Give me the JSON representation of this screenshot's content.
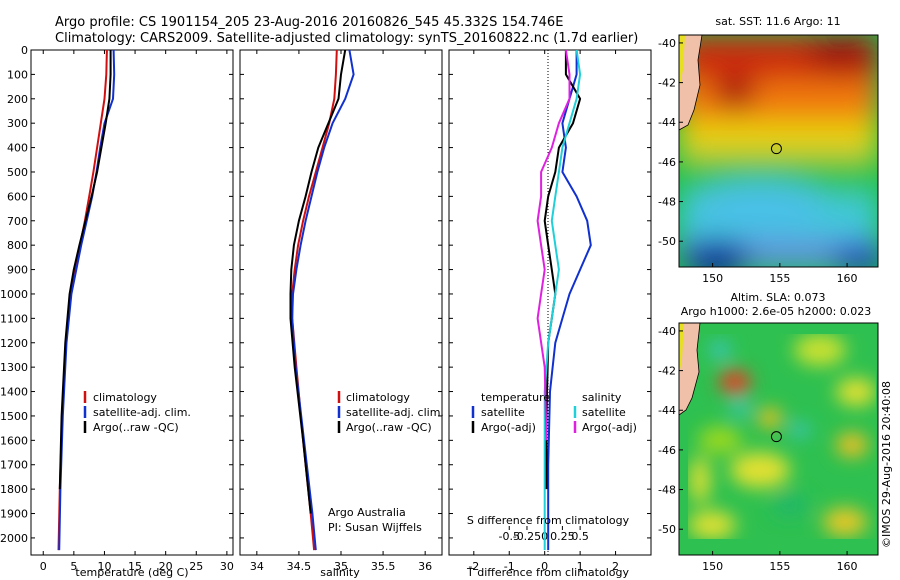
{
  "header": {
    "line1": "Argo profile: CS 1901154_205 23-Aug-2016 20160826_545 45.332S 154.746E",
    "line2": "Climatology: CARS2009. Satellite-adjusted climatology: synTS_20160822.nc (1.7d earlier)"
  },
  "colors": {
    "climatology": "#d01010",
    "satellite": "#1030d0",
    "argo": "#000000",
    "cyan": "#20d0d8",
    "magenta": "#e020e0"
  },
  "chart_data": [
    {
      "id": "temperature",
      "type": "line",
      "xlabel": "temperature (deg C)",
      "ylabel": "",
      "xlim": [
        -2,
        31
      ],
      "ylim": [
        2070,
        0
      ],
      "xticks": [
        0,
        5,
        10,
        15,
        20,
        25,
        30
      ],
      "yticks": [
        0,
        100,
        200,
        300,
        400,
        500,
        600,
        700,
        800,
        900,
        1000,
        1100,
        1200,
        1300,
        1400,
        1500,
        1600,
        1700,
        1800,
        1900,
        2000
      ],
      "legend": {
        "placement": "lower-center",
        "entries": [
          "climatology",
          "satellite-adj. clim.",
          "Argo(..raw -QC)"
        ]
      },
      "series": [
        {
          "name": "climatology",
          "color": "#d01010",
          "x": [
            10.4,
            10.3,
            10.0,
            9.4,
            8.8,
            8.2,
            7.5,
            6.8,
            6.0,
            5.2,
            4.4,
            3.7,
            3.1,
            2.7,
            2.5
          ],
          "y": [
            0,
            100,
            200,
            300,
            400,
            500,
            600,
            700,
            800,
            900,
            1000,
            1200,
            1500,
            1800,
            2050
          ]
        },
        {
          "name": "satellite-adj. clim.",
          "color": "#1030d0",
          "x": [
            11.5,
            11.6,
            11.4,
            10.0,
            9.3,
            8.7,
            8.0,
            7.1,
            6.2,
            5.4,
            4.6,
            3.8,
            3.2,
            2.8,
            2.6
          ],
          "y": [
            0,
            100,
            200,
            300,
            400,
            500,
            600,
            700,
            800,
            900,
            1000,
            1200,
            1500,
            1800,
            2050
          ]
        },
        {
          "name": "Argo(..raw -QC)",
          "color": "#000000",
          "x": [
            11.0,
            11.0,
            10.8,
            10.2,
            9.5,
            8.8,
            7.9,
            6.9,
            5.9,
            5.0,
            4.3,
            3.6,
            3.0,
            2.7
          ],
          "y": [
            0,
            100,
            200,
            300,
            400,
            500,
            600,
            700,
            800,
            900,
            1000,
            1200,
            1500,
            1800
          ]
        }
      ]
    },
    {
      "id": "salinity",
      "type": "line",
      "xlabel": "salinity",
      "ylabel": "",
      "xlim": [
        33.8,
        36.2
      ],
      "ylim": [
        2070,
        0
      ],
      "xticks": [
        34,
        34.5,
        35,
        35.5,
        36
      ],
      "legend": {
        "placement": "lower-center",
        "entries": [
          "climatology",
          "satellite-adj. clim.",
          "Argo(..raw -QC)"
        ]
      },
      "annotation": [
        "Argo Australia",
        "PI: Susan Wijffels"
      ],
      "series": [
        {
          "name": "climatology",
          "color": "#d01010",
          "x": [
            34.95,
            34.94,
            34.92,
            34.86,
            34.78,
            34.7,
            34.62,
            34.55,
            34.49,
            34.45,
            34.42,
            34.42,
            34.47,
            34.55,
            34.64,
            34.68
          ],
          "y": [
            0,
            100,
            200,
            300,
            400,
            500,
            600,
            700,
            800,
            900,
            1000,
            1100,
            1300,
            1600,
            1900,
            2050
          ]
        },
        {
          "name": "satellite-adj. clim.",
          "color": "#1030d0",
          "x": [
            35.1,
            35.15,
            35.05,
            34.9,
            34.8,
            34.72,
            34.65,
            34.58,
            34.52,
            34.47,
            34.43,
            34.42,
            34.46,
            34.56,
            34.66,
            34.7
          ],
          "y": [
            0,
            100,
            200,
            300,
            400,
            500,
            600,
            700,
            800,
            900,
            1000,
            1100,
            1300,
            1600,
            1900,
            2050
          ]
        },
        {
          "name": "Argo(..raw -QC)",
          "color": "#000000",
          "x": [
            35.05,
            35.0,
            34.97,
            34.85,
            34.73,
            34.65,
            34.58,
            34.5,
            34.44,
            34.41,
            34.4,
            34.4,
            34.45,
            34.55,
            34.64
          ],
          "y": [
            0,
            100,
            200,
            300,
            400,
            500,
            600,
            700,
            800,
            900,
            1000,
            1100,
            1300,
            1600,
            1900
          ]
        }
      ]
    },
    {
      "id": "difference",
      "type": "line",
      "xlabel": "T difference from climatology",
      "ylabel": "",
      "xlim": [
        -2.7,
        3.0
      ],
      "ylim": [
        2070,
        0
      ],
      "xticks": [
        -2,
        -1,
        0,
        1,
        2
      ],
      "top_axis": {
        "label": "S difference from climatology",
        "ticks": [
          -0.5,
          -0.25,
          0,
          0.25,
          0.5
        ]
      },
      "legend": {
        "placement": "lower-center",
        "groups": [
          {
            "title": "temperature",
            "entries": [
              "satellite",
              "Argo(-adj)"
            ]
          },
          {
            "title": "salinity",
            "entries": [
              "satellite",
              "Argo(-adj)"
            ]
          }
        ]
      },
      "series": [
        {
          "name": "satellite",
          "group": "temperature",
          "color": "#1030d0",
          "x": [
            0.9,
            0.9,
            0.7,
            0.5,
            0.6,
            0.5,
            0.9,
            1.2,
            1.3,
            1.0,
            0.7,
            0.5,
            0.3,
            0.15,
            0.1,
            0.1
          ],
          "y": [
            0,
            100,
            200,
            300,
            400,
            500,
            600,
            700,
            800,
            900,
            1000,
            1100,
            1200,
            1400,
            1700,
            2050
          ]
        },
        {
          "name": "Argo(-adj)",
          "group": "temperature",
          "color": "#000000",
          "x": [
            0.6,
            0.6,
            1.0,
            0.8,
            0.4,
            0.3,
            0.1,
            0.0,
            0.1,
            0.2,
            0.3,
            0.2,
            0.1,
            0.05,
            0.05
          ],
          "y": [
            0,
            100,
            200,
            300,
            400,
            500,
            600,
            700,
            800,
            900,
            1000,
            1100,
            1200,
            1500,
            1800
          ]
        },
        {
          "name": "satellite",
          "group": "salinity",
          "color": "#20d0d8",
          "x": [
            0.9,
            1.0,
            0.9,
            0.7,
            0.5,
            0.4,
            0.3,
            0.2,
            0.3,
            0.4,
            0.3,
            0.2,
            0.1,
            0.0,
            0.0,
            0.0
          ],
          "y": [
            0,
            100,
            200,
            300,
            400,
            500,
            600,
            700,
            800,
            900,
            1000,
            1100,
            1200,
            1400,
            1700,
            2050
          ]
        },
        {
          "name": "Argo(-adj)",
          "group": "salinity",
          "color": "#e020e0",
          "x": [
            0.6,
            0.7,
            0.7,
            0.4,
            0.2,
            -0.1,
            -0.1,
            -0.2,
            -0.1,
            0.0,
            -0.1,
            -0.2,
            0.0,
            0.05
          ],
          "y": [
            0,
            100,
            200,
            300,
            400,
            500,
            600,
            700,
            800,
            900,
            1000,
            1100,
            1300,
            1600
          ]
        }
      ]
    },
    {
      "id": "sst-map",
      "type": "heatmap",
      "title": "sat. SST: 11.6 Argo: 11",
      "xlim": [
        147.5,
        162.3
      ],
      "ylim": [
        -51.3,
        -39.6
      ],
      "xticks": [
        150,
        155,
        160
      ],
      "yticks": [
        -40,
        -42,
        -44,
        -46,
        -48,
        -50
      ],
      "argo_position": {
        "lon": 154.746,
        "lat": -45.332
      }
    },
    {
      "id": "sla-map",
      "type": "heatmap",
      "title": "Altim. SLA: 0.073",
      "subtitle": "Argo h1000: 2.6e-05 h2000: 0.023",
      "xlim": [
        147.5,
        162.3
      ],
      "ylim": [
        -51.3,
        -39.6
      ],
      "xticks": [
        150,
        155,
        160
      ],
      "yticks": [
        -40,
        -42,
        -44,
        -46,
        -48,
        -50
      ],
      "argo_position": {
        "lon": 154.746,
        "lat": -45.332
      }
    }
  ],
  "credit": "©IMOS 29-Aug-2016 20:40:08"
}
